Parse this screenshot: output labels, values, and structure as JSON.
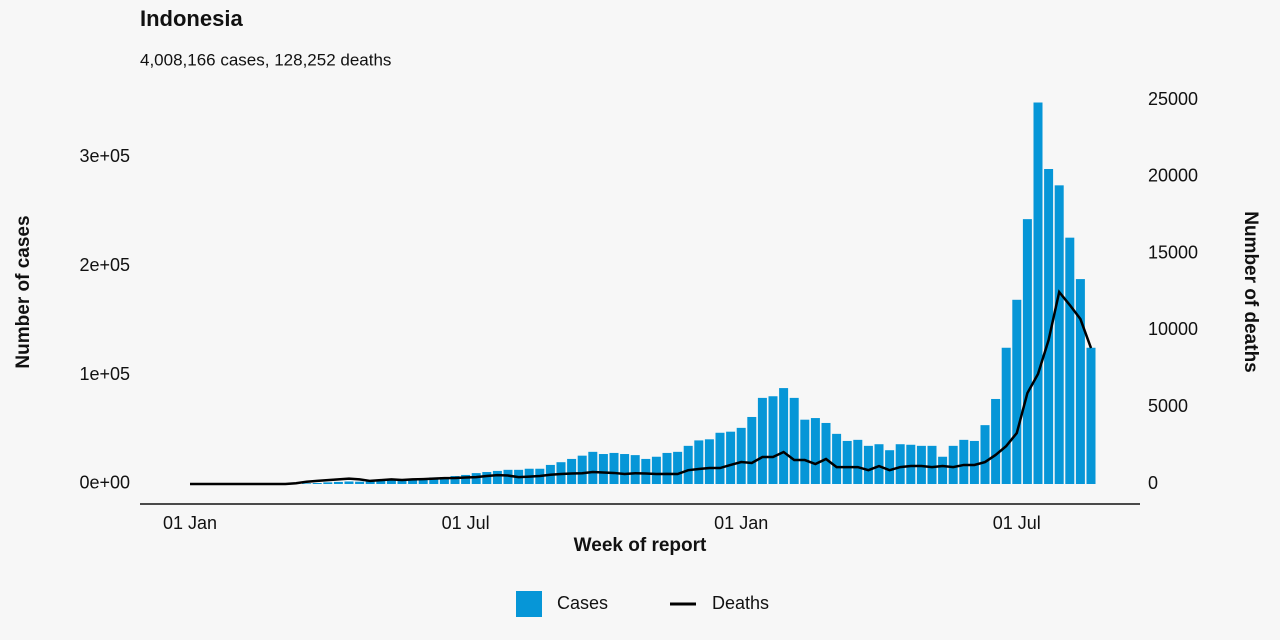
{
  "chart_data": {
    "type": "bar",
    "title": "Indonesia",
    "subtitle": "4,008,166 cases, 128,252 deaths",
    "x_label": "Week of report",
    "y_label": "Number of cases",
    "y2_label": "Number of deaths",
    "categories": [
      "01 Jan",
      null,
      null,
      null,
      null,
      null,
      null,
      null,
      null,
      null,
      null,
      null,
      null,
      null,
      null,
      null,
      null,
      null,
      null,
      null,
      null,
      null,
      null,
      null,
      null,
      null,
      "01 Jul",
      null,
      null,
      null,
      null,
      null,
      null,
      null,
      null,
      null,
      null,
      null,
      null,
      null,
      null,
      null,
      null,
      null,
      null,
      null,
      null,
      null,
      null,
      null,
      null,
      null,
      "01 Jan",
      null,
      null,
      null,
      null,
      null,
      null,
      null,
      null,
      null,
      null,
      null,
      null,
      null,
      null,
      null,
      null,
      null,
      null,
      null,
      null,
      null,
      null,
      null,
      null,
      null,
      "01 Jul",
      null,
      null,
      null,
      null,
      null,
      null,
      null
    ],
    "series": [
      {
        "name": "Cases",
        "type": "bar",
        "color": "#0696d7",
        "values": [
          0,
          0,
          0,
          0,
          0,
          0,
          0,
          0,
          0,
          2,
          100,
          600,
          900,
          1500,
          1900,
          2300,
          2100,
          2500,
          3000,
          3200,
          3500,
          4200,
          5000,
          6000,
          6400,
          7300,
          8300,
          10000,
          11000,
          12000,
          13000,
          13000,
          14000,
          14000,
          17500,
          20000,
          23000,
          26000,
          29500,
          27500,
          28500,
          27500,
          26500,
          23000,
          25000,
          28500,
          29500,
          35000,
          40000,
          41000,
          47000,
          48000,
          51500,
          61500,
          79000,
          80500,
          88000,
          79000,
          59000,
          60500,
          56000,
          46000,
          39500,
          40500,
          35000,
          36500,
          31000,
          36500,
          36000,
          35000,
          35000,
          25000,
          35000,
          40500,
          39500,
          54000,
          78000,
          125000,
          169000,
          243000,
          350000,
          289000,
          274000,
          226000,
          188000,
          125000
        ]
      },
      {
        "name": "Deaths",
        "type": "line",
        "color": "#000000",
        "axis": "y2",
        "values": [
          0,
          0,
          0,
          0,
          0,
          0,
          0,
          0,
          0,
          0,
          50,
          150,
          200,
          250,
          300,
          350,
          300,
          200,
          250,
          300,
          260,
          300,
          320,
          350,
          380,
          390,
          420,
          450,
          520,
          580,
          550,
          450,
          480,
          520,
          600,
          650,
          680,
          700,
          780,
          750,
          720,
          650,
          700,
          680,
          650,
          660,
          650,
          900,
          980,
          1040,
          1040,
          1240,
          1430,
          1370,
          1760,
          1760,
          2080,
          1560,
          1560,
          1300,
          1630,
          1100,
          1100,
          1100,
          900,
          1170,
          900,
          1100,
          1170,
          1170,
          1100,
          1170,
          1100,
          1240,
          1240,
          1430,
          1890,
          2470,
          3320,
          5920,
          7160,
          9375,
          12500,
          11650,
          10740,
          8850
        ]
      }
    ],
    "ylim": [
      -18350,
      352300
    ],
    "yticks": [
      {
        "value": 0,
        "label": "0e+00"
      },
      {
        "value": 100000,
        "label": "1e+05"
      },
      {
        "value": 200000,
        "label": "2e+05"
      },
      {
        "value": 300000,
        "label": "3e+05"
      }
    ],
    "y2lim": [
      -1302,
      25000
    ],
    "y2ticks": [
      0,
      5000,
      10000,
      15000,
      20000,
      25000
    ],
    "grid": false,
    "legend": "bottom"
  }
}
